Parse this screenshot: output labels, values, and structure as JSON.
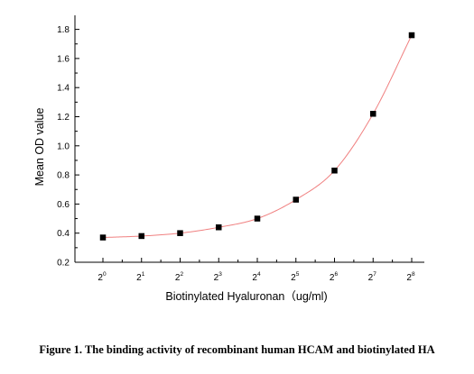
{
  "figure": {
    "caption": "Figure 1. The binding activity of recombinant human HCAM and biotinylated HA"
  },
  "chart_data": {
    "type": "scatter",
    "title": "",
    "xlabel": "Biotinylated Hyaluronan（ug/ml)",
    "ylabel": "Mean OD value",
    "x_scale": "log2",
    "x_ticks": [
      {
        "base": "2",
        "exp": "0"
      },
      {
        "base": "2",
        "exp": "1"
      },
      {
        "base": "2",
        "exp": "2"
      },
      {
        "base": "2",
        "exp": "3"
      },
      {
        "base": "2",
        "exp": "4"
      },
      {
        "base": "2",
        "exp": "5"
      },
      {
        "base": "2",
        "exp": "6"
      },
      {
        "base": "2",
        "exp": "7"
      },
      {
        "base": "2",
        "exp": "8"
      }
    ],
    "y_ticks": [
      "0.2",
      "0.4",
      "0.6",
      "0.8",
      "1.0",
      "1.2",
      "1.4",
      "1.6",
      "1.8"
    ],
    "ylim": [
      0.2,
      1.85
    ],
    "grid": false,
    "legend": "none",
    "series": [
      {
        "marker": "square",
        "marker_color": "#000000",
        "fit_line_color": "#f08080",
        "x": [
          1,
          2,
          4,
          8,
          16,
          32,
          64,
          128,
          256
        ],
        "y": [
          0.37,
          0.38,
          0.4,
          0.44,
          0.5,
          0.63,
          0.83,
          1.22,
          1.76
        ]
      }
    ]
  }
}
